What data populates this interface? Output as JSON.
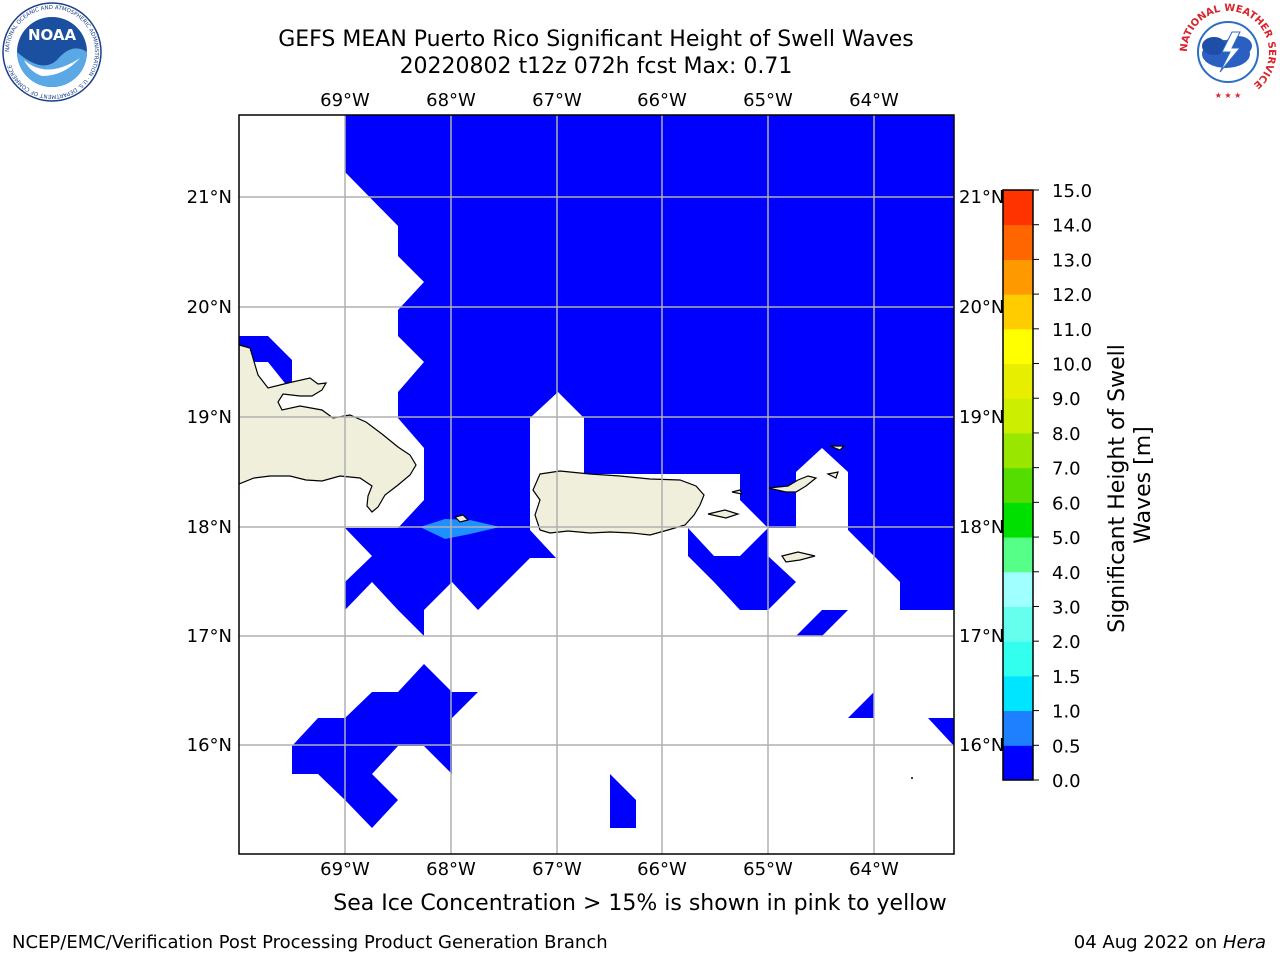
{
  "header": {
    "title_line1": "GEFS MEAN Puerto Rico Significant Height of Swell Waves",
    "title_line2": "20220802 t12z 072h fcst   Max: 0.71"
  },
  "map": {
    "lon_labels": [
      "69°W",
      "68°W",
      "67°W",
      "66°W",
      "65°W",
      "64°W"
    ],
    "lat_labels": [
      "21°N",
      "20°N",
      "19°N",
      "18°N",
      "17°N",
      "16°N"
    ],
    "colors": {
      "ocean_fill": "#0000ff",
      "ocean_light": "#1e90ff",
      "land": "#efefdc",
      "grid": "#b0b0b0"
    }
  },
  "colorbar": {
    "label_line1": "Significant Height of Swell",
    "label_line2": "Waves [m]",
    "ticks": [
      "0.0",
      "0.5",
      "1.0",
      "1.5",
      "2.0",
      "3.0",
      "4.0",
      "5.0",
      "6.0",
      "7.0",
      "8.0",
      "9.0",
      "10.0",
      "11.0",
      "12.0",
      "13.0",
      "14.0",
      "15.0"
    ],
    "colors": [
      "#0000ff",
      "#1e7fff",
      "#00e5ff",
      "#33ffee",
      "#66ffee",
      "#a0ffff",
      "#55ff88",
      "#00e000",
      "#55dd00",
      "#99e600",
      "#ccee00",
      "#e8ee00",
      "#ffff00",
      "#ffcc00",
      "#ff9900",
      "#ff6600",
      "#ff3300",
      "#ff0000"
    ]
  },
  "logos": {
    "noaa_text": "NOAA",
    "noaa_ring": "NATIONAL OCEANIC AND ATMOSPHERIC ADMINISTRATION · U.S. DEPARTMENT OF COMMERCE",
    "nws_ring": "NATIONAL WEATHER SERVICE"
  },
  "footer": {
    "note": "Sea Ice Concentration > 15% is shown in pink to yellow",
    "left": "NCEP/EMC/Verification Post Processing Product Generation Branch",
    "right_date": "04 Aug 2022 on ",
    "right_host": "Hera"
  }
}
